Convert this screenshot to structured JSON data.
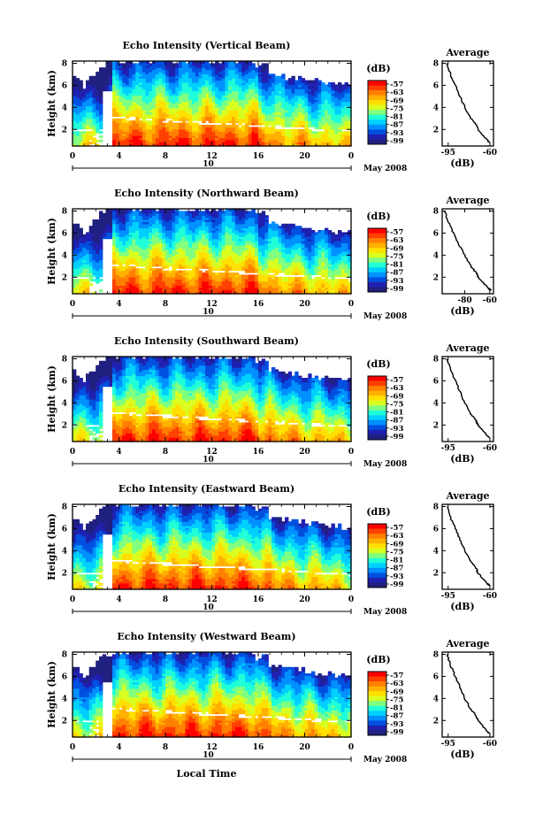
{
  "figure": {
    "xlabel": "Local Time",
    "date_label": "May 2008",
    "day_label": "10",
    "units_label": "(dB)"
  },
  "chart_data": [
    {
      "type": "heatmap",
      "title": "Echo Intensity (Vertical Beam)",
      "ylabel": "Height (km)",
      "xlabel": "Local Time",
      "x_ticks": [
        "0",
        "4",
        "8",
        "12",
        "16",
        "20",
        "0"
      ],
      "y_ticks": [
        "2",
        "4",
        "6",
        "8"
      ],
      "xlim": [
        0,
        24
      ],
      "ylim": [
        0.5,
        8.2
      ],
      "colorbar": {
        "ticks": [
          "-57",
          "-63",
          "-69",
          "-75",
          "-81",
          "-87",
          "-93",
          "-99"
        ]
      },
      "average_profile": {
        "title": "Average",
        "xlabel": "(dB)",
        "x_ticks": [
          "-95",
          "-60"
        ],
        "y_ticks": [
          "2",
          "4",
          "6",
          "8"
        ],
        "xlim": [
          -100,
          -57
        ],
        "profile": [
          [
            -96,
            8.0
          ],
          [
            -93,
            7.0
          ],
          [
            -89,
            6.0
          ],
          [
            -85,
            5.0
          ],
          [
            -81,
            4.0
          ],
          [
            -76,
            3.0
          ],
          [
            -72,
            2.5
          ],
          [
            -70,
            2.0
          ],
          [
            -66,
            1.5
          ],
          [
            -62,
            1.0
          ],
          [
            -60,
            0.8
          ]
        ]
      }
    },
    {
      "type": "heatmap",
      "title": "Echo Intensity (Northward Beam)",
      "ylabel": "Height (km)",
      "xlabel": "Local Time",
      "x_ticks": [
        "0",
        "4",
        "8",
        "12",
        "16",
        "20",
        "0"
      ],
      "y_ticks": [
        "2",
        "4",
        "6",
        "8"
      ],
      "xlim": [
        0,
        24
      ],
      "ylim": [
        0.5,
        8.2
      ],
      "colorbar": {
        "ticks": [
          "-57",
          "-63",
          "-69",
          "-75",
          "-81",
          "-87",
          "-93",
          "-99"
        ]
      },
      "average_profile": {
        "title": "Average",
        "xlabel": "(dB)",
        "x_ticks": [
          "-80",
          "-60"
        ],
        "y_ticks": [
          "2",
          "4",
          "6",
          "8"
        ],
        "xlim": [
          -98,
          -57
        ],
        "profile": [
          [
            -96,
            8.0
          ],
          [
            -93,
            7.0
          ],
          [
            -89,
            6.0
          ],
          [
            -85,
            5.0
          ],
          [
            -80,
            4.0
          ],
          [
            -75,
            3.0
          ],
          [
            -71,
            2.4
          ],
          [
            -69,
            2.0
          ],
          [
            -65,
            1.5
          ],
          [
            -61,
            1.0
          ],
          [
            -59,
            0.8
          ]
        ]
      }
    },
    {
      "type": "heatmap",
      "title": "Echo Intensity (Southward Beam)",
      "ylabel": "Height (km)",
      "xlabel": "Local Time",
      "x_ticks": [
        "0",
        "4",
        "8",
        "12",
        "16",
        "20",
        "0"
      ],
      "y_ticks": [
        "2",
        "4",
        "6",
        "8"
      ],
      "xlim": [
        0,
        24
      ],
      "ylim": [
        0.5,
        8.2
      ],
      "colorbar": {
        "ticks": [
          "-57",
          "-63",
          "-69",
          "-75",
          "-81",
          "-87",
          "-93",
          "-99"
        ]
      },
      "average_profile": {
        "title": "Average",
        "xlabel": "(dB)",
        "x_ticks": [
          "-95",
          "-60"
        ],
        "y_ticks": [
          "2",
          "4",
          "6",
          "8"
        ],
        "xlim": [
          -100,
          -57
        ],
        "profile": [
          [
            -96,
            8.0
          ],
          [
            -93,
            7.0
          ],
          [
            -89,
            6.0
          ],
          [
            -85,
            5.0
          ],
          [
            -81,
            4.0
          ],
          [
            -76,
            3.0
          ],
          [
            -72,
            2.5
          ],
          [
            -70,
            2.0
          ],
          [
            -66,
            1.5
          ],
          [
            -62,
            1.0
          ],
          [
            -60,
            0.8
          ]
        ]
      }
    },
    {
      "type": "heatmap",
      "title": "Echo Intensity (Eastward Beam)",
      "ylabel": "Height (km)",
      "xlabel": "Local Time",
      "x_ticks": [
        "0",
        "4",
        "8",
        "12",
        "16",
        "20",
        "0"
      ],
      "y_ticks": [
        "2",
        "4",
        "6",
        "8"
      ],
      "xlim": [
        0,
        24
      ],
      "ylim": [
        0.5,
        8.2
      ],
      "colorbar": {
        "ticks": [
          "-57",
          "-63",
          "-69",
          "-75",
          "-81",
          "-87",
          "-93",
          "-99"
        ]
      },
      "average_profile": {
        "title": "Average",
        "xlabel": "(dB)",
        "x_ticks": [
          "-95",
          "-60"
        ],
        "y_ticks": [
          "2",
          "4",
          "6",
          "8"
        ],
        "xlim": [
          -100,
          -57
        ],
        "profile": [
          [
            -96,
            8.0
          ],
          [
            -93,
            7.0
          ],
          [
            -89,
            6.0
          ],
          [
            -85,
            5.0
          ],
          [
            -81,
            4.0
          ],
          [
            -76,
            3.0
          ],
          [
            -72,
            2.5
          ],
          [
            -70,
            2.0
          ],
          [
            -66,
            1.5
          ],
          [
            -62,
            1.0
          ],
          [
            -60,
            0.8
          ]
        ]
      }
    },
    {
      "type": "heatmap",
      "title": "Echo Intensity (Westward Beam)",
      "ylabel": "Height (km)",
      "xlabel": "Local Time",
      "x_ticks": [
        "0",
        "4",
        "8",
        "12",
        "16",
        "20",
        "0"
      ],
      "y_ticks": [
        "2",
        "4",
        "6",
        "8"
      ],
      "xlim": [
        0,
        24
      ],
      "ylim": [
        0.5,
        8.2
      ],
      "colorbar": {
        "ticks": [
          "-57",
          "-63",
          "-69",
          "-75",
          "-81",
          "-87",
          "-93",
          "-99"
        ]
      },
      "average_profile": {
        "title": "Average",
        "xlabel": "(dB)",
        "x_ticks": [
          "-95",
          "-60"
        ],
        "y_ticks": [
          "2",
          "4",
          "6",
          "8"
        ],
        "xlim": [
          -100,
          -57
        ],
        "profile": [
          [
            -96,
            8.0
          ],
          [
            -93,
            7.0
          ],
          [
            -89,
            6.0
          ],
          [
            -85,
            5.0
          ],
          [
            -81,
            4.0
          ],
          [
            -76,
            3.0
          ],
          [
            -72,
            2.5
          ],
          [
            -70,
            2.0
          ],
          [
            -66,
            1.5
          ],
          [
            -62,
            1.0
          ],
          [
            -60,
            0.8
          ]
        ]
      }
    }
  ],
  "colormap": [
    "#ff0000",
    "#ff4000",
    "#ff8000",
    "#ffb000",
    "#ffe000",
    "#d8ff20",
    "#80ff80",
    "#20ffd8",
    "#00d0ff",
    "#0090ff",
    "#0050e0",
    "#2020b0",
    "#202080"
  ]
}
